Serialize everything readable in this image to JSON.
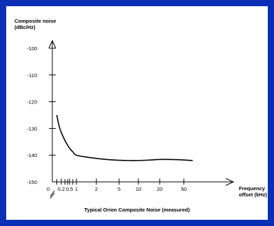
{
  "colors": {
    "frame": "#0a2fb4",
    "frame_outer": "#b8c4ec",
    "panel": "#ffffff",
    "ink": "#000000"
  },
  "chart_data": {
    "type": "line",
    "title": "Typical Orion Composite Noise (measured)",
    "ylabel_line1": "Composite noise",
    "ylabel_line2": "(dBc/Hz)",
    "xlabel_line1": "Frequency",
    "xlabel_line2": "offset (kHz)",
    "x_scale": "log",
    "x_ticks": [
      "0",
      "0.2",
      "0.5",
      "1",
      "2",
      "5",
      "10",
      "20",
      "50"
    ],
    "y_ticks": [
      "-100",
      "-110",
      "-120",
      "-130",
      "-140",
      "-150"
    ],
    "ylim": [
      -150,
      -100
    ],
    "grid": false,
    "legend": "none",
    "series": [
      {
        "x": [
          0.1,
          0.15,
          0.2,
          0.3,
          0.4,
          0.5,
          0.7,
          1,
          1.5,
          2,
          3,
          5,
          7,
          10,
          15,
          20,
          30,
          50,
          70
        ],
        "y": [
          -125,
          -129,
          -131.5,
          -134.5,
          -136.2,
          -137.4,
          -138.8,
          -140.0,
          -140.8,
          -141.2,
          -141.6,
          -141.9,
          -142.0,
          -142.0,
          -141.8,
          -141.6,
          -141.6,
          -141.8,
          -142.0
        ]
      }
    ]
  }
}
